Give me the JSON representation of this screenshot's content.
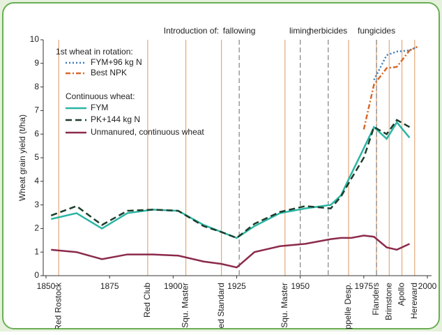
{
  "chart_data": {
    "type": "line",
    "y_label": "Wheat grain yield (t/ha)",
    "xlim": [
      1850,
      2000
    ],
    "xticks": [
      1850,
      1875,
      1900,
      1925,
      1950,
      1975,
      2000
    ],
    "ylim": [
      0,
      10
    ],
    "yticks": [
      0,
      1,
      2,
      3,
      4,
      5,
      6,
      7,
      8,
      9,
      10
    ],
    "x": [
      1852,
      1862,
      1872,
      1882,
      1892,
      1902,
      1912,
      1919,
      1925,
      1932,
      1942,
      1952,
      1962,
      1966,
      1970,
      1975,
      1979,
      1984,
      1988,
      1993,
      1996
    ],
    "legend_headings": [
      "1st wheat in rotation:",
      "Continuous wheat:"
    ],
    "series": [
      {
        "name": "FYM+96 kg N",
        "color": "#3b7dbd",
        "dash": "2,3",
        "values": [
          null,
          null,
          null,
          null,
          null,
          null,
          null,
          null,
          null,
          null,
          null,
          null,
          null,
          null,
          null,
          null,
          8.3,
          9.35,
          9.5,
          9.55,
          9.7
        ]
      },
      {
        "name": "Best NPK",
        "color": "#d8692a",
        "dash": "7,3,2,3",
        "values": [
          null,
          null,
          null,
          null,
          null,
          null,
          null,
          null,
          null,
          null,
          null,
          null,
          null,
          null,
          null,
          6.2,
          8.1,
          8.8,
          8.85,
          9.55,
          9.7
        ]
      },
      {
        "name": "FYM",
        "color": "#2bb5a3",
        "dash": "",
        "values": [
          2.4,
          2.65,
          2.0,
          2.65,
          2.8,
          2.75,
          2.15,
          1.85,
          1.6,
          2.1,
          2.65,
          2.85,
          3.0,
          3.4,
          4.3,
          5.4,
          6.3,
          5.8,
          6.5,
          5.85,
          null
        ]
      },
      {
        "name": "PK+144 kg N",
        "color": "#1c3d2b",
        "dash": "9,5",
        "values": [
          2.55,
          2.95,
          2.15,
          2.75,
          2.8,
          2.75,
          2.1,
          1.85,
          1.6,
          2.2,
          2.7,
          2.95,
          2.85,
          3.35,
          4.1,
          5.0,
          6.3,
          6.0,
          6.6,
          6.3,
          null
        ]
      },
      {
        "name": "Unmanured, continuous wheat",
        "color": "#8b2a4c",
        "dash": "",
        "values": [
          1.1,
          1.0,
          0.7,
          0.9,
          0.9,
          0.85,
          0.6,
          0.5,
          0.35,
          1.0,
          1.25,
          1.35,
          1.55,
          1.6,
          1.6,
          1.7,
          1.65,
          1.2,
          1.1,
          1.35,
          null
        ]
      }
    ],
    "intro_label": "Introduction of:",
    "interventions": [
      {
        "label": "fallowing",
        "x": 1926
      },
      {
        "label": "liming",
        "x": 1950
      },
      {
        "label": "herbicides",
        "x": 1961
      },
      {
        "label": "fungicides",
        "x": 1980
      }
    ],
    "varieties": [
      {
        "label": "Red Rostock",
        "x": 1855
      },
      {
        "label": "Red Club",
        "x": 1890
      },
      {
        "label": "Squ. Master",
        "x": 1905
      },
      {
        "label": "Red Standard",
        "x": 1919
      },
      {
        "label": "Squ. Master",
        "x": 1944
      },
      {
        "label": "Cappelle Desp.",
        "x": 1969
      },
      {
        "label": "Flanders",
        "x": 1980
      },
      {
        "label": "Brimstone",
        "x": 1985
      },
      {
        "label": "Apollo",
        "x": 1990
      },
      {
        "label": "Hereward",
        "x": 1995
      }
    ]
  }
}
